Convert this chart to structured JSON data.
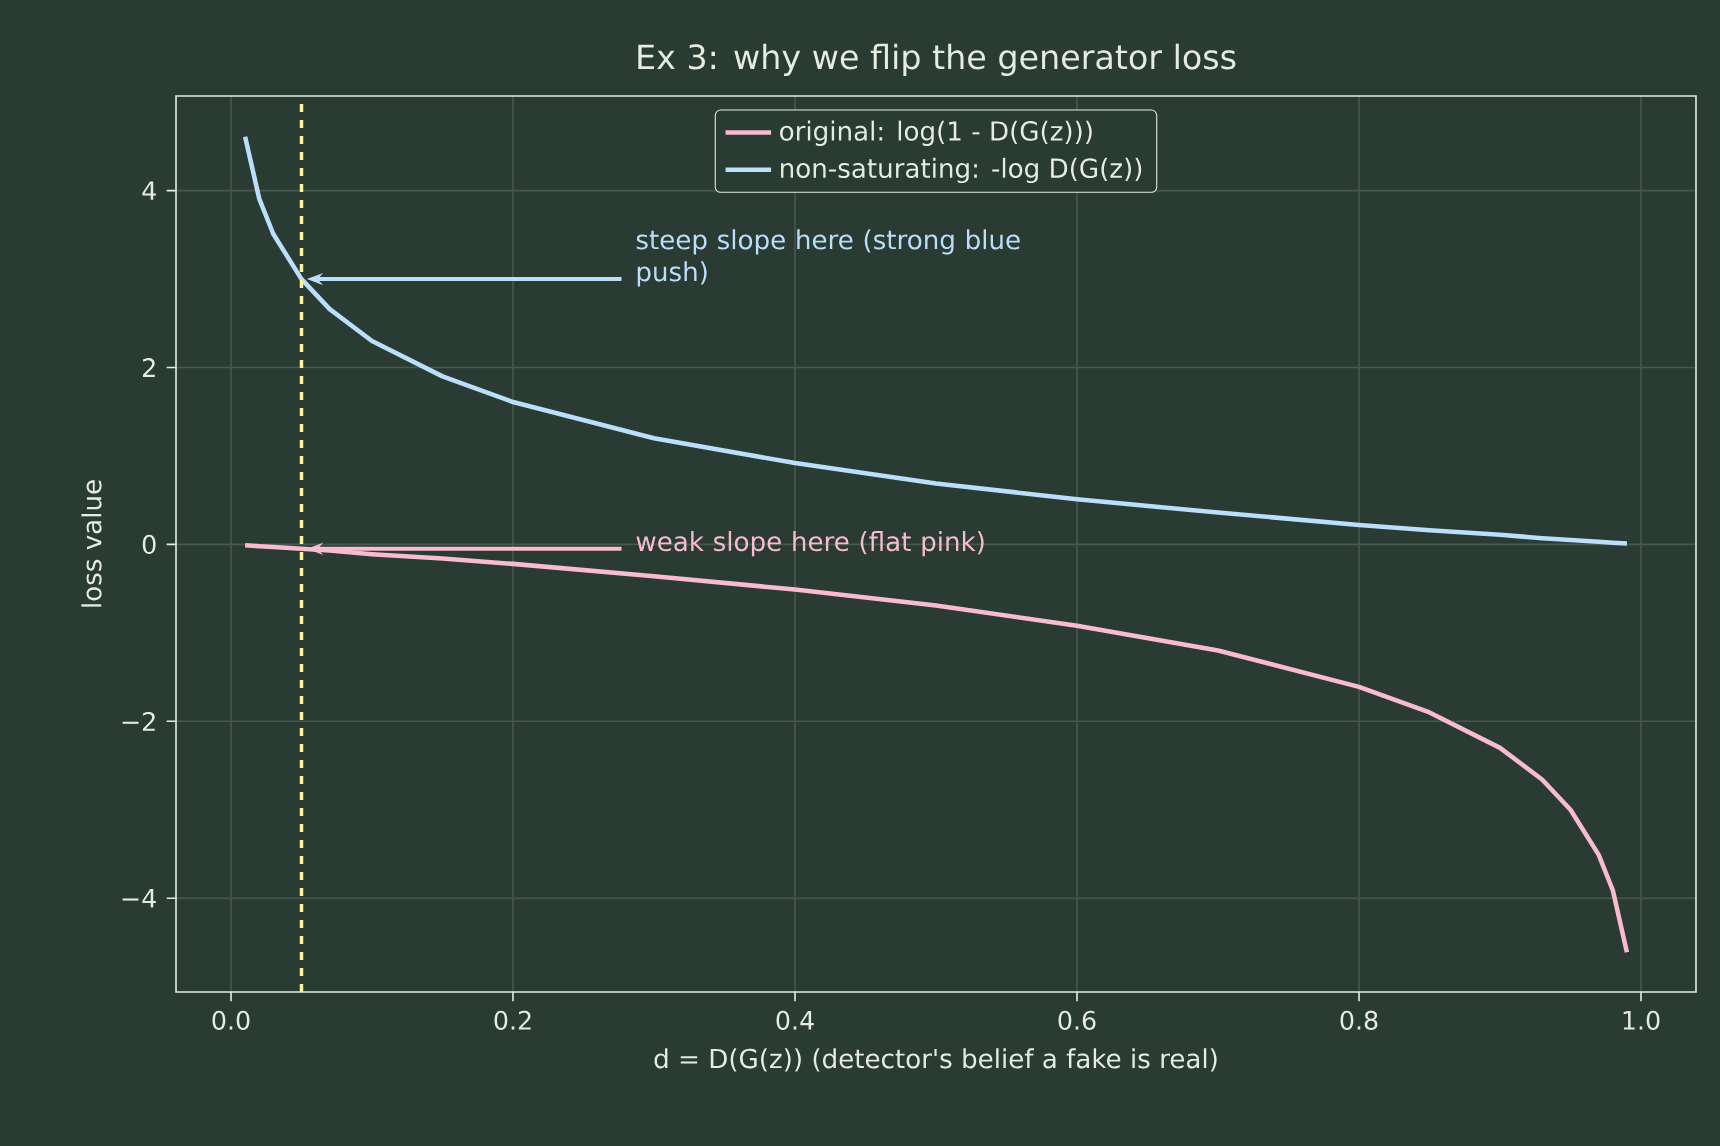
{
  "chart_data": {
    "type": "line",
    "title": "Ex 3: why we flip the generator loss",
    "xlabel": "d = D(G(z))  (detector's belief a fake is real)",
    "ylabel": "loss value",
    "x": [
      0.01,
      0.02,
      0.03,
      0.05,
      0.07,
      0.1,
      0.15,
      0.2,
      0.3,
      0.4,
      0.5,
      0.6,
      0.7,
      0.8,
      0.85,
      0.9,
      0.93,
      0.95,
      0.97,
      0.98,
      0.99
    ],
    "series": [
      {
        "name": "original: log(1 - D(G(z)))",
        "color": "#f8bbd0",
        "values": [
          -0.01,
          -0.02,
          -0.03,
          -0.05,
          -0.07,
          -0.11,
          -0.16,
          -0.22,
          -0.36,
          -0.51,
          -0.69,
          -0.92,
          -1.2,
          -1.61,
          -1.9,
          -2.3,
          -2.66,
          -3.0,
          -3.51,
          -3.91,
          -4.61
        ]
      },
      {
        "name": "non-saturating: -log D(G(z))",
        "color": "#bbdefb",
        "values": [
          4.61,
          3.91,
          3.51,
          3.0,
          2.66,
          2.3,
          1.9,
          1.61,
          1.2,
          0.92,
          0.69,
          0.51,
          0.36,
          0.22,
          0.16,
          0.11,
          0.07,
          0.05,
          0.03,
          0.02,
          0.01
        ]
      }
    ],
    "xlim": [
      -0.039,
      1.039
    ],
    "ylim": [
      -5.06,
      5.07
    ],
    "xticks": [
      {
        "value": 0,
        "label": "0.0"
      },
      {
        "value": 0.2,
        "label": "0.2"
      },
      {
        "value": 0.4,
        "label": "0.4"
      },
      {
        "value": 0.6,
        "label": "0.6"
      },
      {
        "value": 0.8,
        "label": "0.8"
      },
      {
        "value": 1,
        "label": "1.0"
      }
    ],
    "yticks": [
      {
        "value": -4,
        "label": "−4"
      },
      {
        "value": -2,
        "label": "−2"
      },
      0,
      2,
      4
    ],
    "grid": true,
    "legend": "top",
    "line_style": "solid",
    "ref_lines": [
      {
        "axis": "x",
        "value": 0.05,
        "color": "#fff59d",
        "line_style": "dashed"
      }
    ],
    "annotations": [
      {
        "text": "steep slope here (strong blue push)",
        "x": 0.05,
        "y": 3.0
      },
      {
        "text": "weak slope here (flat pink)",
        "x": 0.05,
        "y": -0.05
      }
    ]
  }
}
